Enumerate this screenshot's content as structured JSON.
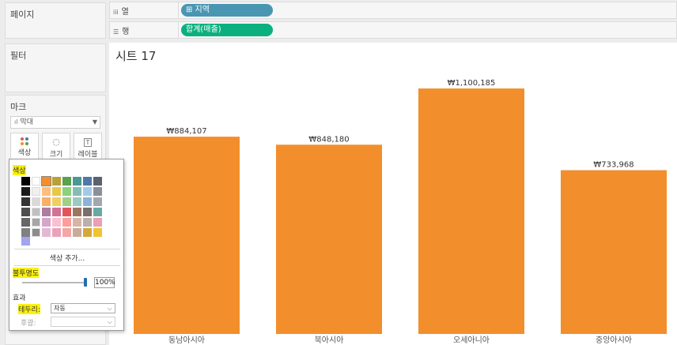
{
  "panels": {
    "pages": {
      "title": "페이지"
    },
    "filters": {
      "title": "필터"
    },
    "marks": {
      "title": "마크",
      "mark_type": "막대",
      "mark_type_icon": "bar-chart-icon",
      "buttons": [
        {
          "label": "색상",
          "icon": "color-dots-icon"
        },
        {
          "label": "크기",
          "icon": "size-icon"
        },
        {
          "label": "레이블",
          "icon": "label-icon"
        }
      ]
    }
  },
  "shelves": {
    "columns": {
      "label": "열",
      "icon": "columns-icon",
      "pill": "⊞ 지역"
    },
    "rows": {
      "label": "행",
      "icon": "rows-icon",
      "pill": "합계(매출)"
    }
  },
  "sheet": {
    "title": "시트 17"
  },
  "chart_data": {
    "type": "bar",
    "categories": [
      "동남아시아",
      "북아시아",
      "오세아니아",
      "중앙아시아"
    ],
    "values": [
      884107,
      848180,
      1100185,
      733968
    ],
    "data_labels": [
      "₩884,107",
      "₩848,180",
      "₩1,100,185",
      "₩733,968"
    ],
    "bar_color": "#f28e2b",
    "ylim": [
      0,
      1150000
    ]
  },
  "color_popup": {
    "section_color": "색상",
    "more_colors": "색상 추가...",
    "section_opacity": "불투명도",
    "opacity_value": "100%",
    "opacity_fraction": 1.0,
    "section_effects": "효과",
    "border_label": "테두리:",
    "border_value": "자동",
    "halo_label": "후광:",
    "halo_value": "",
    "palette_columns": [
      [
        "#000000",
        "#1a1a1a",
        "#333333",
        "#4d4d4d",
        "#666666",
        "#808080"
      ],
      [
        "#ffffff",
        "#f0f0f0",
        "#d9d9d9",
        "#c0c0c0",
        "#a6a6a6",
        "#8c8c8c"
      ],
      [
        "#f28e2b",
        "#ffbe7d",
        "#f9b064",
        "#b07aa1",
        "#d4a6c8",
        "#e3b8d4"
      ],
      [
        "#b8a03a",
        "#e6c84a",
        "#f1ce63",
        "#d37295",
        "#fabfd2",
        "#e9a3b9"
      ],
      [
        "#59a14f",
        "#8cd17d",
        "#a0cf8c",
        "#e15759",
        "#ff9d9a",
        "#f4a7a4"
      ],
      [
        "#499894",
        "#86bcb6",
        "#9cc9c4",
        "#9d7660",
        "#d7b5a6",
        "#c9ab99"
      ],
      [
        "#4e79a7",
        "#a0cbe8",
        "#8fb3d6",
        "#79706e",
        "#bab0ac",
        "#d4a83a"
      ],
      [
        "#5a6270",
        "#8a9099",
        "#a3a7ad",
        "#6aa9a3",
        "#e9a0b4",
        "#f1c232"
      ]
    ],
    "recent_color": "#a3a3f0"
  }
}
